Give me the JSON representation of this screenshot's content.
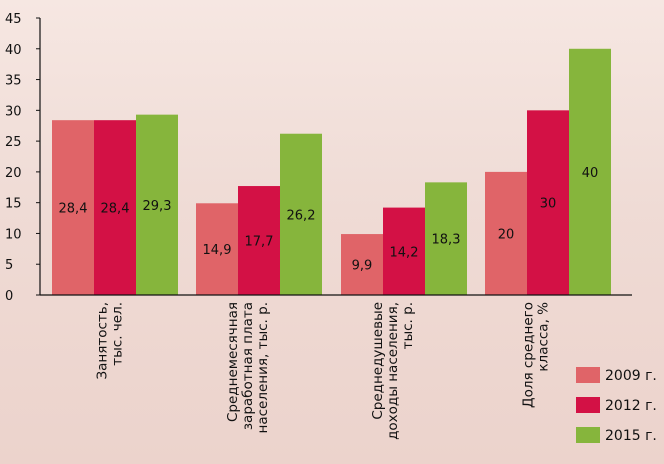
{
  "chart_data": {
    "type": "bar",
    "categories": [
      [
        "Занятость,",
        "тыс. чел."
      ],
      [
        "Среднемесячная",
        "заработная плата",
        "населения, тыс. р."
      ],
      [
        "Среднедушевые",
        "доходы населения,",
        "тыс. р."
      ],
      [
        "Доля среднего",
        "класса, %"
      ]
    ],
    "series": [
      {
        "name": "2009 г.",
        "color": "#e06468",
        "values": [
          28.4,
          14.9,
          9.9,
          20
        ],
        "labels": [
          "28,4",
          "14,9",
          "9,9",
          "20"
        ]
      },
      {
        "name": "2012 г.",
        "color": "#d31145",
        "values": [
          28.4,
          17.7,
          14.2,
          30
        ],
        "labels": [
          "28,4",
          "17,7",
          "14,2",
          "30"
        ]
      },
      {
        "name": "2015 г.",
        "color": "#86b53c",
        "values": [
          29.3,
          26.2,
          18.3,
          40
        ],
        "labels": [
          "29,3",
          "26,2",
          "18,3",
          "40"
        ]
      }
    ],
    "y_ticks": [
      "0",
      "5",
      "10",
      "15",
      "20",
      "25",
      "30",
      "35",
      "40",
      "45"
    ],
    "ylim": [
      0,
      45
    ],
    "grid": false,
    "legend_position": "bottom-right"
  }
}
